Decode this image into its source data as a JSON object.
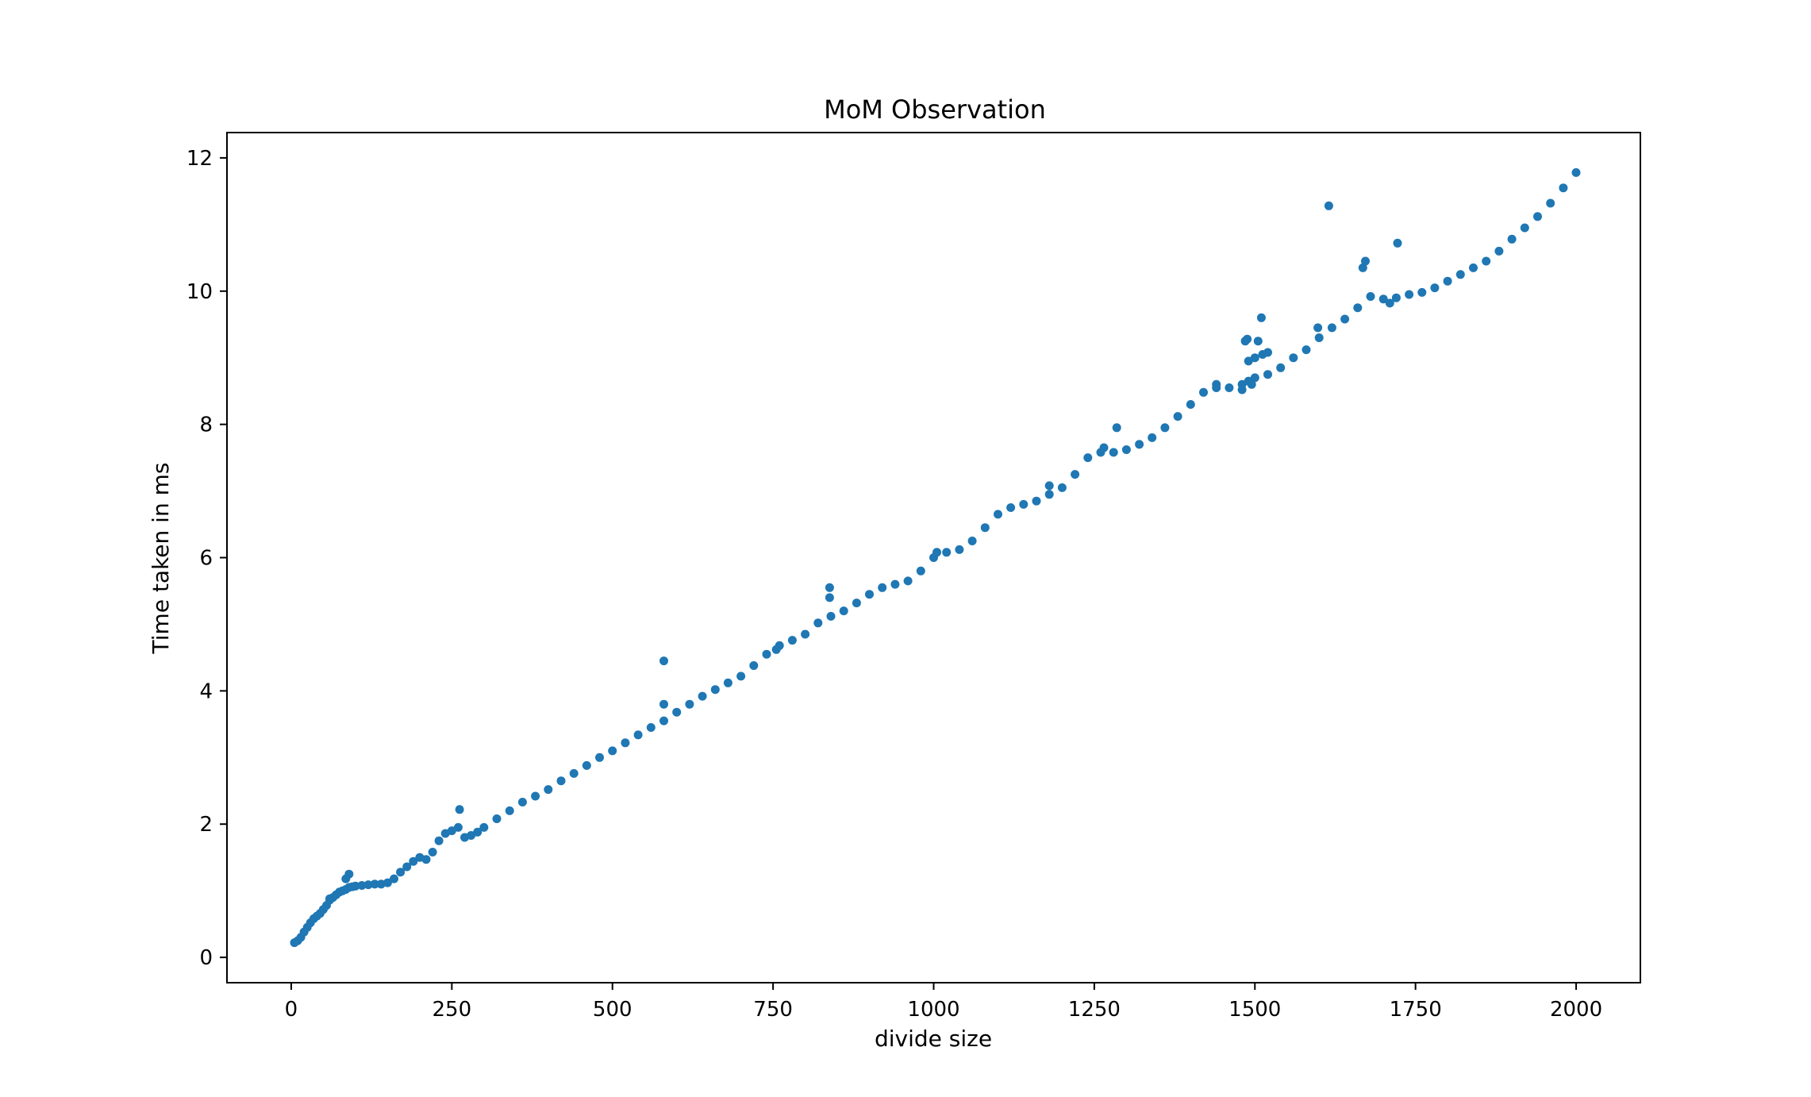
{
  "chart_data": {
    "type": "scatter",
    "title": "MoM Observation",
    "xlabel": "divide size",
    "ylabel": "Time taken in ms",
    "xlim": [
      -100,
      2100
    ],
    "ylim": [
      -0.38,
      12.38
    ],
    "xticks": [
      0,
      250,
      500,
      750,
      1000,
      1250,
      1500,
      1750,
      2000
    ],
    "yticks": [
      0,
      2,
      4,
      6,
      8,
      10,
      12
    ],
    "grid": false,
    "marker_color": "#1f77b4",
    "series": [
      {
        "points": [
          [
            5,
            0.22
          ],
          [
            10,
            0.25
          ],
          [
            15,
            0.3
          ],
          [
            20,
            0.38
          ],
          [
            25,
            0.45
          ],
          [
            30,
            0.52
          ],
          [
            35,
            0.58
          ],
          [
            40,
            0.62
          ],
          [
            45,
            0.66
          ],
          [
            50,
            0.72
          ],
          [
            55,
            0.78
          ],
          [
            60,
            0.86
          ],
          [
            65,
            0.9
          ],
          [
            70,
            0.94
          ],
          [
            75,
            0.98
          ],
          [
            80,
            1.0
          ],
          [
            85,
            1.02
          ],
          [
            90,
            1.05
          ],
          [
            95,
            1.06
          ],
          [
            100,
            1.07
          ],
          [
            110,
            1.08
          ],
          [
            120,
            1.09
          ],
          [
            130,
            1.1
          ],
          [
            140,
            1.1
          ],
          [
            150,
            1.12
          ],
          [
            160,
            1.18
          ],
          [
            170,
            1.28
          ],
          [
            180,
            1.36
          ],
          [
            190,
            1.44
          ],
          [
            200,
            1.5
          ],
          [
            210,
            1.47
          ],
          [
            220,
            1.58
          ],
          [
            230,
            1.75
          ],
          [
            240,
            1.86
          ],
          [
            250,
            1.9
          ],
          [
            260,
            1.95
          ],
          [
            270,
            1.8
          ],
          [
            280,
            1.83
          ],
          [
            290,
            1.88
          ],
          [
            300,
            1.95
          ],
          [
            320,
            2.08
          ],
          [
            340,
            2.2
          ],
          [
            360,
            2.33
          ],
          [
            380,
            2.42
          ],
          [
            400,
            2.52
          ],
          [
            420,
            2.65
          ],
          [
            440,
            2.76
          ],
          [
            460,
            2.88
          ],
          [
            480,
            3.0
          ],
          [
            500,
            3.1
          ],
          [
            520,
            3.22
          ],
          [
            540,
            3.34
          ],
          [
            560,
            3.45
          ],
          [
            580,
            3.55
          ],
          [
            600,
            3.68
          ],
          [
            620,
            3.8
          ],
          [
            640,
            3.92
          ],
          [
            660,
            4.02
          ],
          [
            680,
            4.12
          ],
          [
            700,
            4.22
          ],
          [
            720,
            4.38
          ],
          [
            740,
            4.55
          ],
          [
            760,
            4.68
          ],
          [
            780,
            4.76
          ],
          [
            800,
            4.85
          ],
          [
            820,
            5.02
          ],
          [
            840,
            5.12
          ],
          [
            860,
            5.2
          ],
          [
            880,
            5.32
          ],
          [
            900,
            5.45
          ],
          [
            920,
            5.55
          ],
          [
            940,
            5.6
          ],
          [
            960,
            5.65
          ],
          [
            980,
            5.8
          ],
          [
            1000,
            6.0
          ],
          [
            1020,
            6.08
          ],
          [
            1040,
            6.12
          ],
          [
            1060,
            6.25
          ],
          [
            1080,
            6.45
          ],
          [
            1100,
            6.65
          ],
          [
            1120,
            6.75
          ],
          [
            1140,
            6.8
          ],
          [
            1160,
            6.85
          ],
          [
            1180,
            6.95
          ],
          [
            1200,
            7.05
          ],
          [
            1220,
            7.25
          ],
          [
            1240,
            7.5
          ],
          [
            1260,
            7.58
          ],
          [
            1280,
            7.58
          ],
          [
            1300,
            7.62
          ],
          [
            1320,
            7.7
          ],
          [
            1340,
            7.8
          ],
          [
            1360,
            7.95
          ],
          [
            1380,
            8.12
          ],
          [
            1400,
            8.3
          ],
          [
            1420,
            8.48
          ],
          [
            1440,
            8.6
          ],
          [
            1460,
            8.55
          ],
          [
            1480,
            8.6
          ],
          [
            1490,
            8.65
          ],
          [
            1500,
            8.7
          ],
          [
            1520,
            8.75
          ],
          [
            1540,
            8.85
          ],
          [
            1560,
            9.0
          ],
          [
            1580,
            9.12
          ],
          [
            1600,
            9.3
          ],
          [
            1620,
            9.45
          ],
          [
            1640,
            9.58
          ],
          [
            1660,
            9.75
          ],
          [
            1680,
            9.92
          ],
          [
            1700,
            9.88
          ],
          [
            1720,
            9.9
          ],
          [
            1740,
            9.95
          ],
          [
            1760,
            9.98
          ],
          [
            1780,
            10.05
          ],
          [
            1800,
            10.15
          ],
          [
            1820,
            10.25
          ],
          [
            1840,
            10.35
          ],
          [
            1860,
            10.45
          ],
          [
            1880,
            10.6
          ],
          [
            1900,
            10.78
          ],
          [
            1920,
            10.95
          ],
          [
            1940,
            11.12
          ],
          [
            1960,
            11.32
          ],
          [
            1980,
            11.55
          ],
          [
            2000,
            11.78
          ],
          [
            90,
            1.25
          ],
          [
            85,
            1.18
          ],
          [
            60,
            0.88
          ],
          [
            262,
            2.22
          ],
          [
            580,
            4.45
          ],
          [
            580,
            3.8
          ],
          [
            838,
            5.55
          ],
          [
            838,
            5.4
          ],
          [
            1285,
            7.95
          ],
          [
            1180,
            7.08
          ],
          [
            1485,
            9.25
          ],
          [
            1490,
            8.95
          ],
          [
            1500,
            9.0
          ],
          [
            1505,
            9.25
          ],
          [
            1510,
            9.6
          ],
          [
            1512,
            9.05
          ],
          [
            1495,
            8.6
          ],
          [
            1598,
            9.45
          ],
          [
            1615,
            11.28
          ],
          [
            1668,
            10.35
          ],
          [
            1672,
            10.45
          ],
          [
            1722,
            10.72
          ],
          [
            1710,
            9.82
          ],
          [
            1488,
            9.28
          ],
          [
            1520,
            9.08
          ],
          [
            1480,
            8.52
          ],
          [
            1005,
            6.08
          ],
          [
            1265,
            7.65
          ],
          [
            1440,
            8.55
          ],
          [
            755,
            4.62
          ]
        ]
      }
    ]
  }
}
